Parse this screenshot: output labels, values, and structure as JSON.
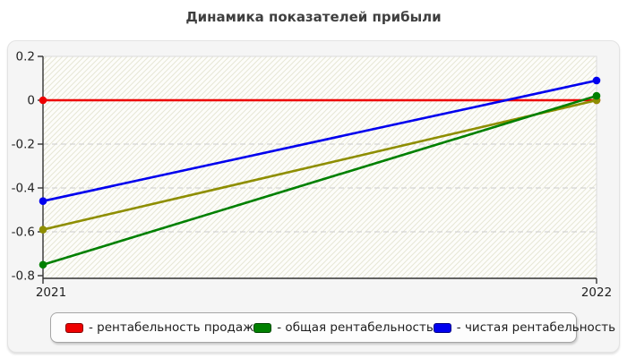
{
  "title": "Динамика показателей прибыли",
  "chart_data": {
    "type": "line",
    "categories": [
      "2021",
      "2022"
    ],
    "series": [
      {
        "name": "рентабельность продаж",
        "color": "#ee0000",
        "values": [
          0,
          0
        ]
      },
      {
        "name": "",
        "color": "#8e8e00",
        "values": [
          -0.59,
          0
        ]
      },
      {
        "name": "общая рентабельность",
        "color": "#008000",
        "values": [
          -0.75,
          0.02
        ]
      },
      {
        "name": "чистая рентабельность",
        "color": "#0000ee",
        "values": [
          -0.46,
          0.09
        ]
      }
    ],
    "ylim": [
      -0.8,
      0.2
    ],
    "yticks": [
      0.2,
      0,
      -0.2,
      -0.4,
      -0.6,
      -0.8
    ],
    "ytick_labels": [
      "0.2",
      "0",
      "-0.2",
      "-0.4",
      "-0.6",
      "-0.8"
    ],
    "xlabel": "",
    "ylabel": "",
    "grid": "horizontal-dashed",
    "plot_background": "diagonal-hatch",
    "legend_position": "bottom"
  },
  "legend": {
    "items": [
      {
        "label": "- рентабельность продаж",
        "color": "#ee0000"
      },
      {
        "label": "- общая рентабельность",
        "color": "#008000"
      },
      {
        "label": "- чистая рентабельность",
        "color": "#0000ee"
      }
    ]
  },
  "colors": {
    "panel_bg": "#f5f5f5",
    "grid": "#cccccc",
    "axis": "#333333",
    "hatch": "#e7e7d6",
    "text": "#222222"
  }
}
